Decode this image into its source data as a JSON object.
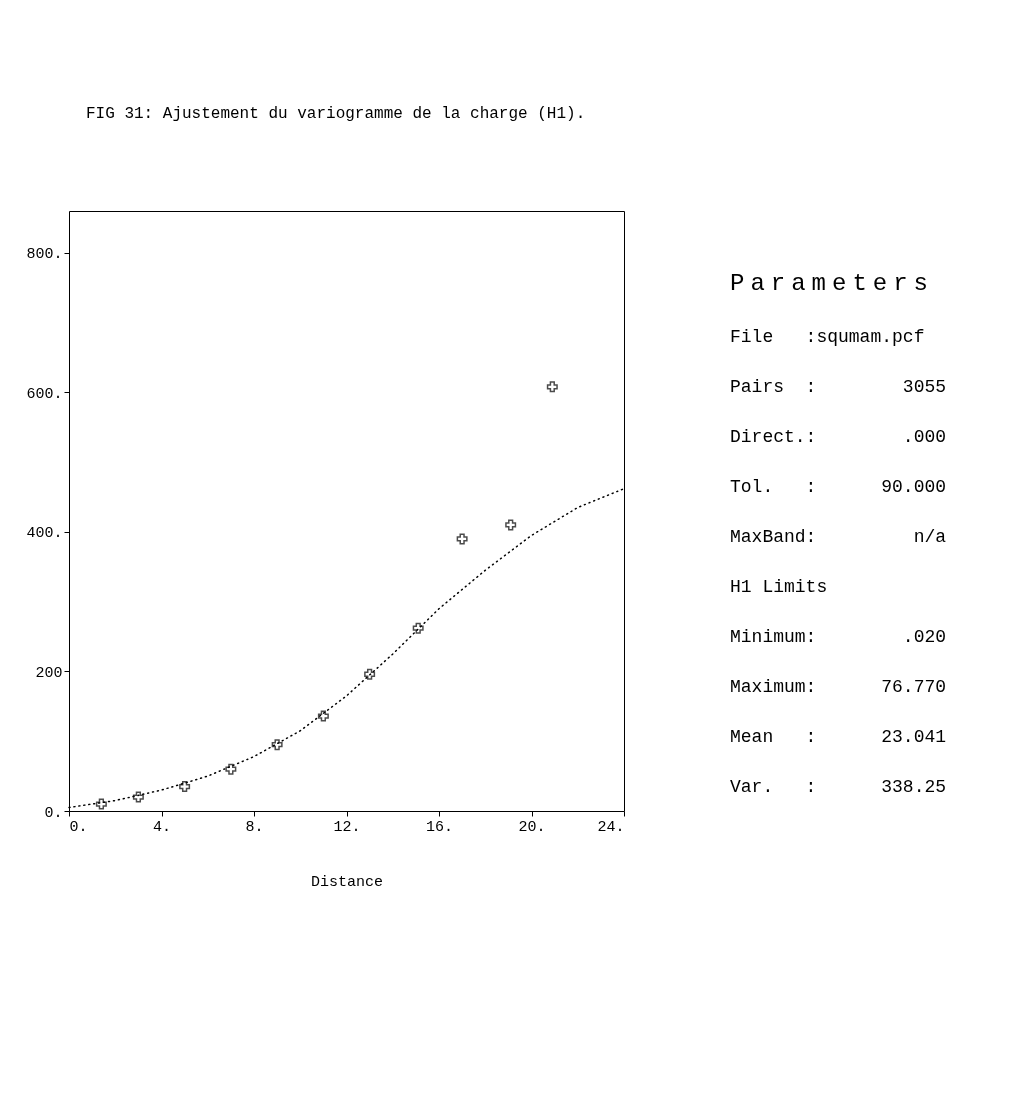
{
  "chart_data": {
    "type": "scatter",
    "title": "FIG 31: Ajustement du variogramme de la charge (H1).",
    "xlabel": "Distance",
    "xlim": [
      0,
      24
    ],
    "ylim": [
      0,
      860
    ],
    "xticks": [
      {
        "value": 0,
        "label": "0."
      },
      {
        "value": 4,
        "label": "4."
      },
      {
        "value": 8,
        "label": "8."
      },
      {
        "value": 12,
        "label": "12."
      },
      {
        "value": 16,
        "label": "16."
      },
      {
        "value": 20,
        "label": "20."
      },
      {
        "value": 24,
        "label": "24."
      }
    ],
    "yticks": [
      {
        "value": 0,
        "label": "0."
      },
      200,
      {
        "value": 400,
        "label": "400."
      },
      {
        "value": 600,
        "label": "600."
      },
      {
        "value": 800,
        "label": "800."
      }
    ],
    "grid": false,
    "series": [
      {
        "marker": "cross",
        "color": "#000000",
        "x": [
          1.4,
          3,
          5,
          7,
          9,
          11,
          13,
          15.1,
          17,
          19.1,
          20.9
        ],
        "values": [
          10,
          20,
          35,
          60,
          95,
          136,
          196,
          262,
          390,
          410,
          608
        ]
      },
      {
        "type": "line",
        "color": "#000000",
        "line_style": "dotted",
        "x": [
          0,
          2,
          4,
          6,
          8,
          10,
          12,
          14,
          16,
          18,
          20,
          22,
          24
        ],
        "values": [
          5,
          15,
          30,
          50,
          78,
          115,
          165,
          225,
          290,
          345,
          395,
          435,
          462
        ]
      }
    ],
    "annotations": [
      "Parameters",
      "File   :squmam.pcf",
      "Pairs  :        3055",
      "Direct.:        .000",
      "Tol.   :      90.000",
      "MaxBand:         n/a",
      "H1 Limits",
      "Minimum:        .020",
      "Maximum:      76.770",
      "Mean   :      23.041",
      "Var.   :      338.25"
    ]
  }
}
